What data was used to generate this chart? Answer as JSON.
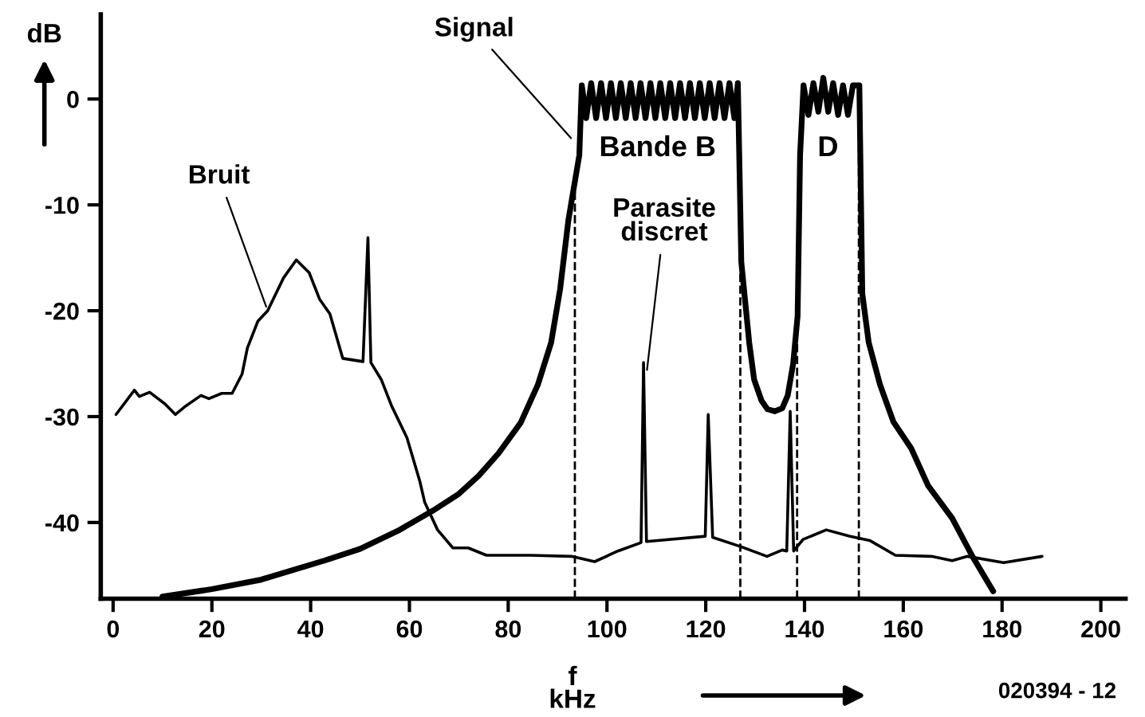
{
  "chart_data": {
    "type": "line",
    "xlabel": "f\nkHz",
    "ylabel": "dB",
    "xlim": [
      -2.5,
      205
    ],
    "ylim": [
      -47.2,
      8
    ],
    "xticks": [
      0,
      20,
      40,
      60,
      80,
      100,
      120,
      140,
      160,
      180,
      200
    ],
    "yticks": [
      {
        "value": 0,
        "label": "0"
      },
      {
        "value": -10,
        "label": "-10"
      },
      {
        "value": -20,
        "label": "-20"
      },
      {
        "value": -30,
        "label": "-30"
      },
      {
        "value": -40,
        "label": "-40"
      }
    ],
    "grid": false,
    "legend": false,
    "marker": "none",
    "line_style": "solid",
    "series": [
      {
        "color": "#000000",
        "x": [
          10,
          20,
          30,
          42.8,
          50,
          58,
          64.7,
          70,
          74,
          78,
          82.5,
          86,
          88.7,
          90.5,
          92.2,
          94.4,
          94.9,
          95.8,
          96.8,
          97.8,
          98.8,
          99.8,
          100.8,
          101.8,
          102.8,
          103.8,
          104.8,
          105.8,
          106.8,
          107.8,
          108.8,
          109.8,
          110.8,
          111.8,
          112.8,
          113.8,
          114.8,
          115.8,
          116.8,
          117.8,
          118.8,
          119.8,
          120.8,
          121.8,
          122.8,
          123.8,
          124.8,
          125.8,
          126.5,
          127.2,
          128.8,
          129.8,
          131.3,
          132.5,
          134,
          135.5,
          136.6,
          137.7,
          138.6,
          139.1,
          139.8,
          140.8,
          141.8,
          142.8,
          143.8,
          144.8,
          145.8,
          146.8,
          147.8,
          148.8,
          149.8,
          151.1,
          151.7,
          153,
          155.3,
          158,
          161.6,
          165,
          169.9,
          174,
          178.2
        ],
        "values": [
          -47,
          -46.3,
          -45.4,
          -43.6,
          -42.5,
          -40.7,
          -38.9,
          -37.3,
          -35.6,
          -33.5,
          -30.6,
          -27,
          -23,
          -18,
          -11.4,
          -5.3,
          1.3,
          -1.8,
          1.5,
          -1.8,
          1.5,
          -1.8,
          1.5,
          -1.8,
          1.5,
          -1.8,
          1.5,
          -1.8,
          1.5,
          -1.8,
          1.5,
          -1.8,
          1.5,
          -1.8,
          1.5,
          -1.8,
          1.5,
          -1.8,
          1.5,
          -1.8,
          1.5,
          -1.8,
          1.5,
          -1.8,
          1.5,
          -1.8,
          1.5,
          -1.8,
          1.5,
          -15.4,
          -23,
          -26.5,
          -28.5,
          -29.3,
          -29.5,
          -29.2,
          -28,
          -25,
          -20.5,
          -5.3,
          1.3,
          -1.5,
          1.5,
          -1.2,
          2,
          -1.2,
          1.5,
          -1.5,
          1.3,
          -1.5,
          1.3,
          1.3,
          -18.4,
          -23,
          -27,
          -30.5,
          -33,
          -36.5,
          -39.6,
          -43.2,
          -46.5
        ]
      },
      {
        "color": "#000000",
        "x": [
          0.6,
          4.3,
          5.3,
          7.4,
          10.5,
          12.6,
          14.7,
          17.8,
          19.4,
          22,
          24.1,
          26.1,
          27.2,
          29.3,
          31.3,
          34.5,
          37.1,
          39.7,
          41.8,
          43.9,
          46.5,
          50.6,
          51.6,
          52.2,
          54.3,
          56.4,
          59.5,
          62.1,
          63.1,
          65.7,
          68.8,
          71.9,
          75.6,
          84.4,
          92.8,
          97.5,
          102.2,
          106.9,
          107.4,
          108,
          119.9,
          120.5,
          121.4,
          127.2,
          132.4,
          135.5,
          136.4,
          137.1,
          137.8,
          139.7,
          144.4,
          149.1,
          153.2,
          158.4,
          165.7,
          169.9,
          173,
          180.3,
          188.1
        ],
        "values": [
          -29.8,
          -27.5,
          -28.1,
          -27.7,
          -28.8,
          -29.8,
          -29,
          -28,
          -28.3,
          -27.8,
          -27.8,
          -26,
          -23.5,
          -21,
          -20,
          -16.9,
          -15.2,
          -16.4,
          -18.9,
          -20.3,
          -24.5,
          -24.8,
          -13.1,
          -24.9,
          -26.5,
          -29,
          -32,
          -36.1,
          -38.1,
          -40.7,
          -42.4,
          -42.4,
          -43.1,
          -43.1,
          -43.2,
          -43.7,
          -42.7,
          -41.9,
          -24.9,
          -41.8,
          -41.3,
          -29.8,
          -41.4,
          -42.3,
          -43.2,
          -42.6,
          -42.7,
          -29.5,
          -42.7,
          -41.6,
          -40.7,
          -41.3,
          -41.7,
          -43.1,
          -43.2,
          -43.6,
          -43.2,
          -43.8,
          -43.2
        ]
      }
    ],
    "ref_lines": [
      {
        "axis": "x",
        "value": 93.5,
        "color": "#000000",
        "line_style": "dashed"
      },
      {
        "axis": "x",
        "value": 127,
        "color": "#000000",
        "line_style": "dashed"
      },
      {
        "axis": "x",
        "value": 138.5,
        "color": "#000000",
        "line_style": "dashed"
      },
      {
        "axis": "x",
        "value": 151,
        "color": "#000000",
        "line_style": "dashed"
      }
    ],
    "annotations": [
      {
        "text": "Bruit",
        "x": 31.3,
        "y": -20
      },
      {
        "text": "Signal",
        "x": 93.3,
        "y": -4
      },
      {
        "text": "Parasite\ndiscret",
        "x": 108,
        "y": -26
      },
      "Bande B",
      "D",
      "020394 - 12"
    ]
  }
}
